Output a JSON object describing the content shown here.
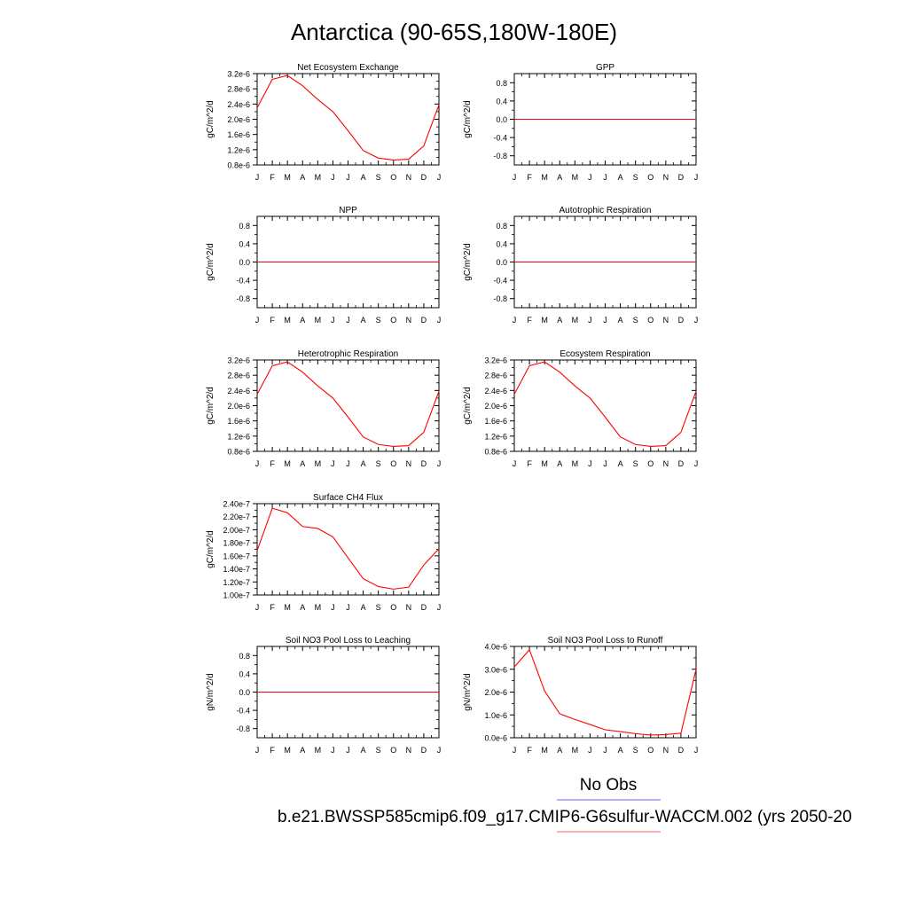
{
  "title": "Antarctica (90-65S,180W-180E)",
  "legend": {
    "items": [
      {
        "label": "No Obs",
        "color": "#8080ff"
      },
      {
        "label": "b.e21.BWSSP585cmip6.f09_g17.CMIP6-G6sulfur-WACCM.002 (yrs 2050-20",
        "color": "#ff8080"
      }
    ]
  },
  "colors": {
    "series": "#ff0000"
  },
  "chart_data": [
    {
      "type": "line",
      "title": "Net Ecosystem Exchange",
      "ylabel": "gC/m^2/d",
      "x": [
        "J",
        "F",
        "M",
        "A",
        "M",
        "J",
        "J",
        "A",
        "S",
        "O",
        "N",
        "D",
        "J"
      ],
      "yticks": [
        "0.8e-6",
        "1.2e-6",
        "1.6e-6",
        "2.0e-6",
        "2.4e-6",
        "2.8e-6",
        "3.2e-6"
      ],
      "ytick_values": [
        0.8,
        1.2,
        1.6,
        2.0,
        2.4,
        2.8,
        3.2
      ],
      "ylim": [
        0.8,
        3.2
      ],
      "values": [
        2.3,
        3.05,
        3.15,
        2.88,
        2.52,
        2.2,
        1.7,
        1.18,
        0.98,
        0.93,
        0.95,
        1.3,
        2.38
      ]
    },
    {
      "type": "line",
      "title": "GPP",
      "ylabel": "gC/m^2/d",
      "x": [
        "J",
        "F",
        "M",
        "A",
        "M",
        "J",
        "J",
        "A",
        "S",
        "O",
        "N",
        "D",
        "J"
      ],
      "yticks": [
        "-0.8",
        "-0.4",
        "0.0",
        "0.4",
        "0.8"
      ],
      "ytick_values": [
        -0.8,
        -0.4,
        0.0,
        0.4,
        0.8
      ],
      "ylim": [
        -1,
        1
      ],
      "values": [
        0,
        0,
        0,
        0,
        0,
        0,
        0,
        0,
        0,
        0,
        0,
        0,
        0
      ]
    },
    {
      "type": "line",
      "title": "NPP",
      "ylabel": "gC/m^2/d",
      "x": [
        "J",
        "F",
        "M",
        "A",
        "M",
        "J",
        "J",
        "A",
        "S",
        "O",
        "N",
        "D",
        "J"
      ],
      "yticks": [
        "-0.8",
        "-0.4",
        "0.0",
        "0.4",
        "0.8"
      ],
      "ytick_values": [
        -0.8,
        -0.4,
        0.0,
        0.4,
        0.8
      ],
      "ylim": [
        -1,
        1
      ],
      "values": [
        0,
        0,
        0,
        0,
        0,
        0,
        0,
        0,
        0,
        0,
        0,
        0,
        0
      ]
    },
    {
      "type": "line",
      "title": "Autotrophic Respiration",
      "ylabel": "gC/m^2/d",
      "x": [
        "J",
        "F",
        "M",
        "A",
        "M",
        "J",
        "J",
        "A",
        "S",
        "O",
        "N",
        "D",
        "J"
      ],
      "yticks": [
        "-0.8",
        "-0.4",
        "0.0",
        "0.4",
        "0.8"
      ],
      "ytick_values": [
        -0.8,
        -0.4,
        0.0,
        0.4,
        0.8
      ],
      "ylim": [
        -1,
        1
      ],
      "values": [
        0,
        0,
        0,
        0,
        0,
        0,
        0,
        0,
        0,
        0,
        0,
        0,
        0
      ]
    },
    {
      "type": "line",
      "title": "Heterotrophic Respiration",
      "ylabel": "gC/m^2/d",
      "x": [
        "J",
        "F",
        "M",
        "A",
        "M",
        "J",
        "J",
        "A",
        "S",
        "O",
        "N",
        "D",
        "J"
      ],
      "yticks": [
        "0.8e-6",
        "1.2e-6",
        "1.6e-6",
        "2.0e-6",
        "2.4e-6",
        "2.8e-6",
        "3.2e-6"
      ],
      "ytick_values": [
        0.8,
        1.2,
        1.6,
        2.0,
        2.4,
        2.8,
        3.2
      ],
      "ylim": [
        0.8,
        3.2
      ],
      "values": [
        2.3,
        3.05,
        3.15,
        2.88,
        2.52,
        2.2,
        1.7,
        1.18,
        0.98,
        0.93,
        0.95,
        1.3,
        2.38
      ]
    },
    {
      "type": "line",
      "title": "Ecosystem Respiration",
      "ylabel": "gC/m^2/d",
      "x": [
        "J",
        "F",
        "M",
        "A",
        "M",
        "J",
        "J",
        "A",
        "S",
        "O",
        "N",
        "D",
        "J"
      ],
      "yticks": [
        "0.8e-6",
        "1.2e-6",
        "1.6e-6",
        "2.0e-6",
        "2.4e-6",
        "2.8e-6",
        "3.2e-6"
      ],
      "ytick_values": [
        0.8,
        1.2,
        1.6,
        2.0,
        2.4,
        2.8,
        3.2
      ],
      "ylim": [
        0.8,
        3.2
      ],
      "values": [
        2.3,
        3.05,
        3.15,
        2.88,
        2.52,
        2.2,
        1.7,
        1.18,
        0.98,
        0.93,
        0.95,
        1.3,
        2.38
      ]
    },
    {
      "type": "line",
      "title": "Surface CH4 Flux",
      "ylabel": "gC/m^2/d",
      "x": [
        "J",
        "F",
        "M",
        "A",
        "M",
        "J",
        "J",
        "A",
        "S",
        "O",
        "N",
        "D",
        "J"
      ],
      "yticks": [
        "1.00e-7",
        "1.20e-7",
        "1.40e-7",
        "1.60e-7",
        "1.80e-7",
        "2.00e-7",
        "2.20e-7",
        "2.40e-7"
      ],
      "ytick_values": [
        1.0,
        1.2,
        1.4,
        1.6,
        1.8,
        2.0,
        2.2,
        2.4
      ],
      "ylim": [
        1.0,
        2.4
      ],
      "values": [
        1.68,
        2.33,
        2.26,
        2.05,
        2.02,
        1.89,
        1.57,
        1.25,
        1.13,
        1.09,
        1.12,
        1.46,
        1.71
      ]
    },
    {
      "type": "line",
      "title": "Soil NO3 Pool Loss to Leaching",
      "ylabel": "gN/m^2/d",
      "x": [
        "J",
        "F",
        "M",
        "A",
        "M",
        "J",
        "J",
        "A",
        "S",
        "O",
        "N",
        "D",
        "J"
      ],
      "yticks": [
        "-0.8",
        "-0.4",
        "0.0",
        "0.4",
        "0.8"
      ],
      "ytick_values": [
        -0.8,
        -0.4,
        0.0,
        0.4,
        0.8
      ],
      "ylim": [
        -1,
        1
      ],
      "values": [
        0,
        0,
        0,
        0,
        0,
        0,
        0,
        0,
        0,
        0,
        0,
        0,
        0
      ]
    },
    {
      "type": "line",
      "title": "Soil NO3 Pool Loss to Runoff",
      "ylabel": "gN/m^2/d",
      "x": [
        "J",
        "F",
        "M",
        "A",
        "M",
        "J",
        "J",
        "A",
        "S",
        "O",
        "N",
        "D",
        "J"
      ],
      "yticks": [
        "0.0e-6",
        "1.0e-6",
        "2.0e-6",
        "3.0e-6",
        "4.0e-6"
      ],
      "ytick_values": [
        0.0,
        1.0,
        2.0,
        3.0,
        4.0
      ],
      "ylim": [
        0.0,
        4.0
      ],
      "values": [
        3.1,
        3.85,
        2.05,
        1.05,
        0.8,
        0.58,
        0.35,
        0.27,
        0.18,
        0.12,
        0.14,
        0.2,
        3.0
      ]
    }
  ]
}
